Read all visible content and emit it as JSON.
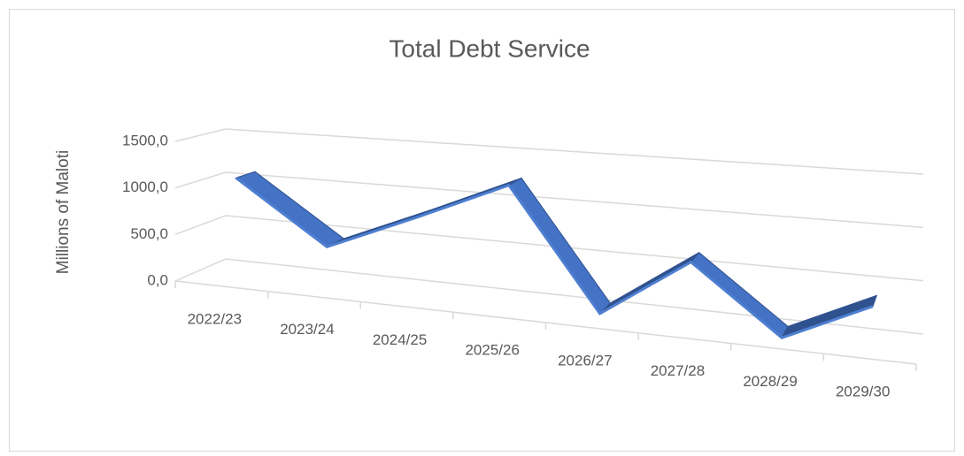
{
  "chart_data": {
    "type": "line3d",
    "title": "Total Debt Service",
    "y_label": "Millions of Maloti",
    "categories": [
      "2022/23",
      "2023/24",
      "2024/25",
      "2025/26",
      "2026/27",
      "2027/28",
      "2028/29",
      "2029/30"
    ],
    "series": [
      {
        "name": "Total Debt Service",
        "color": "#4472c4",
        "values": [
          1100,
          450,
          850,
          1250,
          60,
          650,
          20,
          400
        ]
      }
    ],
    "ylim": [
      0,
      1500
    ],
    "yticks": [
      {
        "value": 0,
        "label": "0,0"
      },
      {
        "value": 500,
        "label": "500,0"
      },
      {
        "value": 1000,
        "label": "1000,0"
      },
      {
        "value": 1500,
        "label": "1500,0"
      }
    ],
    "grid": true
  }
}
